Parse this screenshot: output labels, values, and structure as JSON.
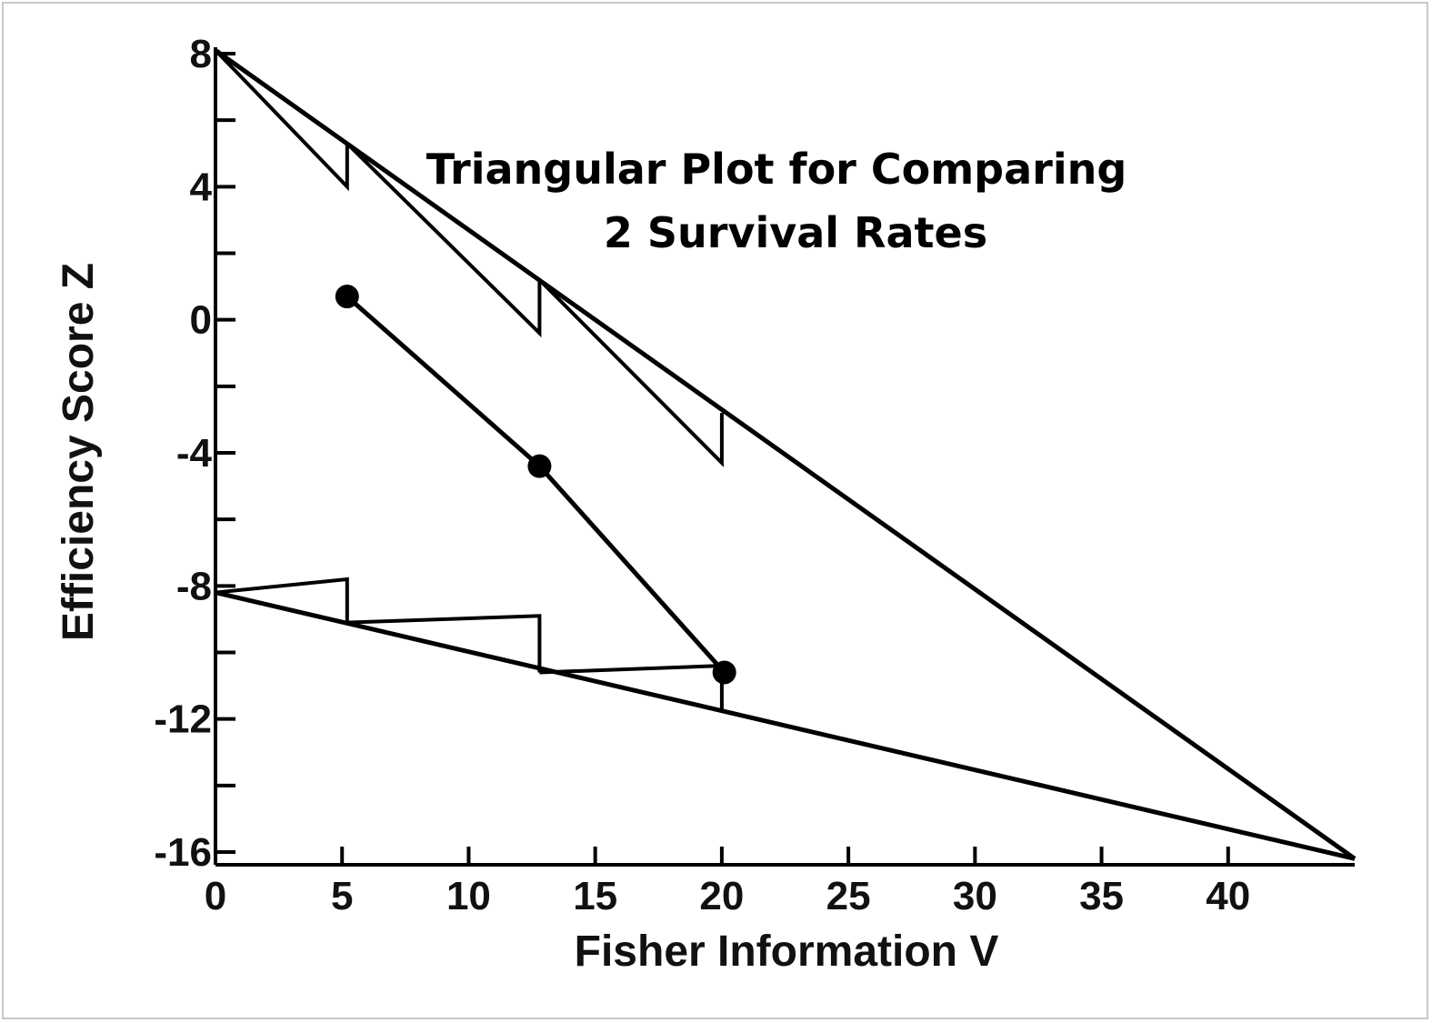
{
  "chart_data": {
    "type": "line",
    "title_lines": [
      "Triangular Plot for Comparing",
      "2 Survival Rates"
    ],
    "xlabel": "Fisher Information V",
    "ylabel": "Efficiency Score Z",
    "xlim": [
      0,
      45
    ],
    "ylim": [
      -16,
      8
    ],
    "x_ticks": [
      0,
      5,
      10,
      15,
      20,
      25,
      30,
      35,
      40
    ],
    "x_tick_labels": [
      "0",
      "5",
      "10",
      "15",
      "20",
      "25",
      "30",
      "35",
      "40"
    ],
    "y_ticks_major": [
      8,
      4,
      0,
      -4,
      -8,
      -12,
      -16
    ],
    "y_tick_labels": [
      "8",
      "4",
      "0",
      "-4",
      "-8",
      "-12",
      "-16"
    ],
    "y_ticks_minor": [
      6,
      2,
      -2,
      -6,
      -10,
      -14
    ],
    "grid": false,
    "boundaries": {
      "upper": {
        "x": [
          0,
          45
        ],
        "y": [
          8.1,
          -16.2
        ]
      },
      "lower": {
        "x": [
          0,
          45
        ],
        "y": [
          -8.2,
          -16.2
        ]
      }
    },
    "christmas_trees": {
      "upper": [
        {
          "x": [
            0,
            5.2,
            5.2
          ],
          "y": [
            8.1,
            4.0,
            5.3
          ]
        },
        {
          "x": [
            5.2,
            12.8,
            12.8
          ],
          "y": [
            5.3,
            -0.4,
            1.2
          ]
        },
        {
          "x": [
            12.8,
            20.0,
            20.0
          ],
          "y": [
            1.2,
            -4.3,
            -2.8
          ]
        }
      ],
      "lower": [
        {
          "x": [
            0,
            5.2,
            5.2
          ],
          "y": [
            -8.2,
            -7.8,
            -9.1
          ]
        },
        {
          "x": [
            5.2,
            12.8,
            12.8
          ],
          "y": [
            -9.1,
            -8.9,
            -10.6
          ]
        },
        {
          "x": [
            12.8,
            20.0,
            20.0
          ],
          "y": [
            -10.6,
            -10.4,
            -11.8
          ]
        }
      ]
    },
    "series": [
      {
        "x": [
          5.2,
          12.8,
          20.1
        ],
        "y": [
          0.7,
          -4.4,
          -10.6
        ]
      }
    ],
    "colors": {
      "line": "#000000",
      "frame": "#c8c8c8"
    }
  }
}
